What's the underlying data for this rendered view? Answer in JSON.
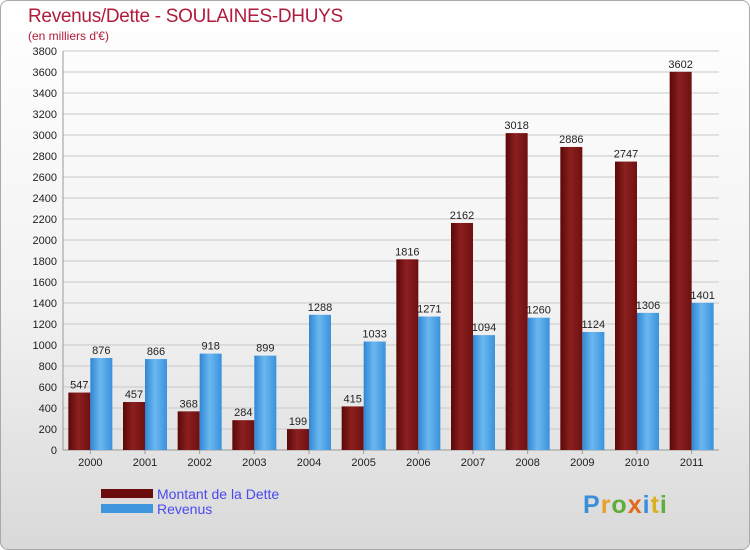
{
  "header": {
    "title": "Revenus/Dette - SOULAINES-DHUYS",
    "subtitle": "(en milliers d'€)"
  },
  "colors": {
    "dette": "#7b1414",
    "dette_light": "#9a2f2f",
    "revenus": "#3f96df",
    "revenus_light": "#7cc0f2",
    "title": "#b01c3c",
    "legend_text": "#4a4af0",
    "grid": "#c8c8c8"
  },
  "chart_data": {
    "type": "bar",
    "title": "Revenus/Dette - SOULAINES-DHUYS",
    "ylabel": "(en milliers d'€)",
    "xlabel": "",
    "categories": [
      "2000",
      "2001",
      "2002",
      "2003",
      "2004",
      "2005",
      "2006",
      "2007",
      "2008",
      "2009",
      "2010",
      "2011"
    ],
    "series": [
      {
        "name": "Montant de la Dette",
        "values": [
          547,
          457,
          368,
          284,
          199,
          415,
          1816,
          2162,
          3018,
          2886,
          2747,
          3602
        ]
      },
      {
        "name": "Revenus",
        "values": [
          876,
          866,
          918,
          899,
          1288,
          1033,
          1271,
          1094,
          1260,
          1124,
          1306,
          1401
        ]
      }
    ],
    "ylim": [
      0,
      3800
    ],
    "ytick_step": 200,
    "grid": true,
    "legend_position": "bottom-left"
  },
  "legend": {
    "items": [
      {
        "label": "Montant de la Dette",
        "color": "#6b0d0d"
      },
      {
        "label": "Revenus",
        "color": "#3f96df"
      }
    ]
  },
  "logo": {
    "letters": [
      {
        "char": "P",
        "color": "#3a8fd8"
      },
      {
        "char": "r",
        "color": "#e7a12a"
      },
      {
        "char": "o",
        "color": "#5fae3a"
      },
      {
        "char": "x",
        "color": "#e36a1a"
      },
      {
        "char": "i",
        "color": "#3a8fd8"
      },
      {
        "char": "t",
        "color": "#d9b11e"
      },
      {
        "char": "i",
        "color": "#5fae3a"
      }
    ]
  }
}
